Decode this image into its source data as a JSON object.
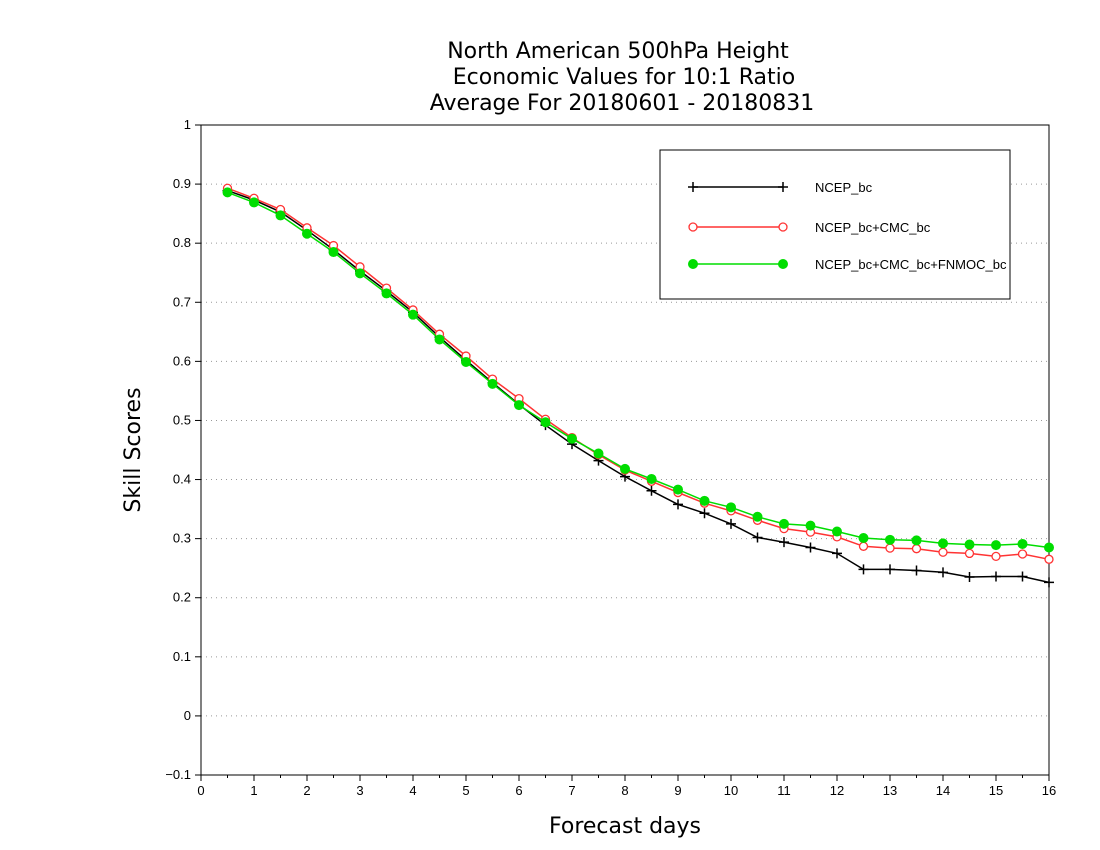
{
  "chart_data": {
    "type": "line",
    "title": [
      "North American 500hPa Height",
      "Economic Values for 10:1 Ratio",
      "Average For 20180601 - 20180831"
    ],
    "xlabel": "Forecast days",
    "ylabel": "Skill Scores",
    "xlim": [
      0,
      16
    ],
    "ylim": [
      -0.1,
      1
    ],
    "xticks": [
      0,
      1,
      2,
      3,
      4,
      5,
      6,
      7,
      8,
      9,
      10,
      11,
      12,
      13,
      14,
      15,
      16
    ],
    "yticks": [
      -0.1,
      0,
      0.1,
      0.2,
      0.3,
      0.4,
      0.5,
      0.6,
      0.7,
      0.8,
      0.9,
      1
    ],
    "ytick_labels": [
      "−0.1",
      "0",
      "0.1",
      "0.2",
      "0.3",
      "0.4",
      "0.5",
      "0.6",
      "0.7",
      "0.8",
      "0.9",
      "1"
    ],
    "grid": "horizontal dotted",
    "legend_position": "top-right",
    "x": [
      0.5,
      1,
      1.5,
      2,
      2.5,
      3,
      3.5,
      4,
      4.5,
      5,
      5.5,
      6,
      6.5,
      7,
      7.5,
      8,
      8.5,
      9,
      9.5,
      10,
      10.5,
      11,
      11.5,
      12,
      12.5,
      13,
      13.5,
      14,
      14.5,
      15,
      15.5,
      16
    ],
    "series": [
      {
        "name": "NCEP_bc",
        "color": "#000000",
        "marker": "plus",
        "values": [
          0.889,
          0.873,
          0.853,
          0.822,
          0.789,
          0.753,
          0.719,
          0.683,
          0.641,
          0.602,
          0.564,
          0.527,
          0.492,
          0.46,
          0.432,
          0.405,
          0.381,
          0.358,
          0.343,
          0.325,
          0.302,
          0.294,
          0.285,
          0.275,
          0.248,
          0.248,
          0.246,
          0.243,
          0.235,
          0.236,
          0.236,
          0.226
        ]
      },
      {
        "name": "NCEP_bc+CMC_bc",
        "color": "#ff3333",
        "marker": "open-circle",
        "values": [
          0.893,
          0.876,
          0.857,
          0.826,
          0.796,
          0.76,
          0.724,
          0.687,
          0.646,
          0.609,
          0.57,
          0.537,
          0.502,
          0.471,
          0.442,
          0.416,
          0.397,
          0.378,
          0.36,
          0.347,
          0.331,
          0.317,
          0.311,
          0.303,
          0.287,
          0.284,
          0.283,
          0.277,
          0.275,
          0.27,
          0.274,
          0.265
        ]
      },
      {
        "name": "NCEP_bc+CMC_bc+FNMOC_bc",
        "color": "#00dd00",
        "marker": "filled-circle",
        "values": [
          0.886,
          0.869,
          0.847,
          0.816,
          0.785,
          0.749,
          0.715,
          0.679,
          0.637,
          0.599,
          0.562,
          0.526,
          0.497,
          0.469,
          0.444,
          0.418,
          0.401,
          0.383,
          0.364,
          0.353,
          0.337,
          0.325,
          0.322,
          0.312,
          0.301,
          0.298,
          0.297,
          0.292,
          0.29,
          0.289,
          0.291,
          0.285
        ]
      }
    ]
  }
}
